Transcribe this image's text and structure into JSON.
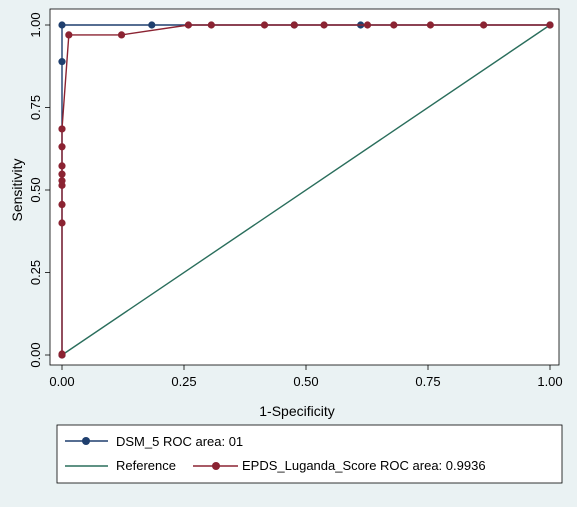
{
  "chart_data": {
    "type": "line",
    "xlabel": "1-Specificity",
    "ylabel": "Sensitivity",
    "xlim": [
      0,
      1
    ],
    "ylim": [
      0,
      1
    ],
    "x_ticks": [
      "0.00",
      "0.25",
      "0.50",
      "0.75",
      "1.00"
    ],
    "y_ticks": [
      "0.00",
      "0.25",
      "0.50",
      "0.75",
      "1.00"
    ],
    "grid": false,
    "legend_position": "bottom",
    "series": [
      {
        "name": "DSM_5 ROC area: 01",
        "color": "#1f3f6e",
        "marker": "circle",
        "x": [
          0,
          0,
          0,
          0.184,
          0.476,
          0.612,
          1
        ],
        "y": [
          0,
          0.889,
          1,
          1,
          1,
          1,
          1
        ]
      },
      {
        "name": "Reference",
        "color": "#2a6e5c",
        "marker": "none",
        "x": [
          0,
          1
        ],
        "y": [
          0,
          1
        ]
      },
      {
        "name": "EPDS_Luganda_Score ROC area: 0.9936",
        "color": "#8b2332",
        "marker": "circle",
        "x": [
          0,
          0,
          0,
          0,
          0,
          0,
          0,
          0,
          0,
          0,
          0.014,
          0.122,
          0.259,
          0.306,
          0.415,
          0.476,
          0.537,
          0.626,
          0.68,
          0.755,
          0.864,
          1
        ],
        "y": [
          0,
          0.003,
          0.4,
          0.456,
          0.514,
          0.528,
          0.548,
          0.573,
          0.631,
          0.685,
          0.97,
          0.97,
          1,
          1,
          1,
          1,
          1,
          1,
          1,
          1,
          1,
          1
        ]
      }
    ]
  }
}
